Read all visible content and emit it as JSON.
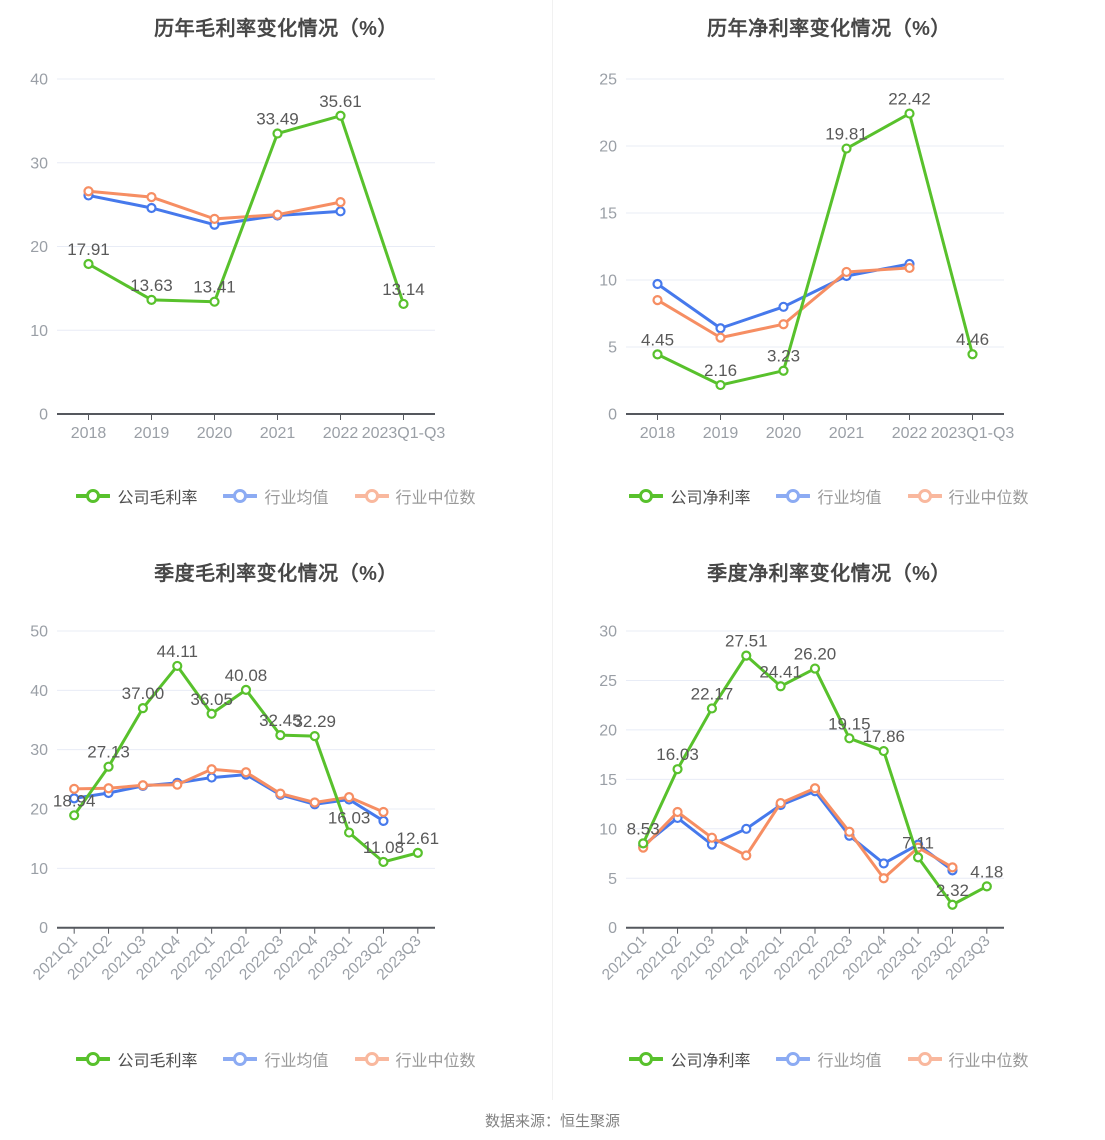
{
  "footer": {
    "source": "数据来源：恒生聚源"
  },
  "colors": {
    "company": "#58C12C",
    "industry_avg": "#4679EC",
    "industry_median": "#F68E63",
    "grid_line": "#E8ECF6",
    "axis_line": "#55585E",
    "tick_text": "#9A9FA6",
    "data_label": "#595959"
  },
  "chart_data": [
    {
      "id": "annual-gross-margin",
      "type": "line",
      "title": "历年毛利率变化情况（%）",
      "xlabel": "",
      "ylabel": "",
      "grid": true,
      "legend_position": "bottom",
      "rotate_x_labels": false,
      "ylim": [
        0,
        40
      ],
      "yticks": [
        0,
        10,
        20,
        30,
        40
      ],
      "categories": [
        "2018",
        "2019",
        "2020",
        "2021",
        "2022",
        "2023Q1-Q3"
      ],
      "series": [
        {
          "name": "行业均值",
          "color_key": "industry_avg",
          "show_labels": false,
          "values": [
            26.1,
            24.6,
            22.6,
            23.7,
            24.2
          ]
        },
        {
          "name": "行业中位数",
          "color_key": "industry_median",
          "show_labels": false,
          "values": [
            26.6,
            25.9,
            23.3,
            23.8,
            25.3
          ]
        },
        {
          "name": "公司毛利率",
          "color_key": "company",
          "show_labels": true,
          "values": [
            17.91,
            13.63,
            13.41,
            33.49,
            35.61,
            13.14
          ]
        }
      ],
      "legend_order": [
        "公司毛利率",
        "行业均值",
        "行业中位数"
      ]
    },
    {
      "id": "annual-net-margin",
      "type": "line",
      "title": "历年净利率变化情况（%）",
      "xlabel": "",
      "ylabel": "",
      "grid": true,
      "legend_position": "bottom",
      "rotate_x_labels": false,
      "ylim": [
        0,
        25
      ],
      "yticks": [
        0,
        5,
        10,
        15,
        20,
        25
      ],
      "categories": [
        "2018",
        "2019",
        "2020",
        "2021",
        "2022",
        "2023Q1-Q3"
      ],
      "series": [
        {
          "name": "行业均值",
          "color_key": "industry_avg",
          "show_labels": false,
          "values": [
            9.7,
            6.4,
            8.0,
            10.3,
            11.2
          ]
        },
        {
          "name": "行业中位数",
          "color_key": "industry_median",
          "show_labels": false,
          "values": [
            8.5,
            5.7,
            6.7,
            10.6,
            10.9
          ]
        },
        {
          "name": "公司净利率",
          "color_key": "company",
          "show_labels": true,
          "values": [
            4.45,
            2.16,
            3.23,
            19.81,
            22.42,
            4.46
          ]
        }
      ],
      "legend_order": [
        "公司净利率",
        "行业均值",
        "行业中位数"
      ]
    },
    {
      "id": "quarterly-gross-margin",
      "type": "line",
      "title": "季度毛利率变化情况（%）",
      "xlabel": "",
      "ylabel": "",
      "grid": true,
      "legend_position": "bottom",
      "rotate_x_labels": true,
      "ylim": [
        0,
        50
      ],
      "yticks": [
        0,
        10,
        20,
        30,
        40,
        50
      ],
      "categories": [
        "2021Q1",
        "2021Q2",
        "2021Q3",
        "2021Q4",
        "2022Q1",
        "2022Q2",
        "2022Q3",
        "2022Q4",
        "2023Q1",
        "2023Q2",
        "2023Q3"
      ],
      "series": [
        {
          "name": "行业均值",
          "color_key": "industry_avg",
          "show_labels": false,
          "values": [
            21.8,
            22.7,
            23.9,
            24.4,
            25.3,
            25.8,
            22.4,
            20.8,
            21.6,
            18.0
          ]
        },
        {
          "name": "行业中位数",
          "color_key": "industry_median",
          "show_labels": false,
          "values": [
            23.4,
            23.5,
            24.0,
            24.1,
            26.7,
            26.2,
            22.6,
            21.1,
            22.0,
            19.5
          ]
        },
        {
          "name": "公司毛利率",
          "color_key": "company",
          "show_labels": true,
          "values": [
            18.94,
            27.13,
            37.0,
            44.11,
            36.05,
            40.08,
            32.45,
            32.29,
            16.03,
            11.08,
            12.61
          ]
        }
      ],
      "legend_order": [
        "公司毛利率",
        "行业均值",
        "行业中位数"
      ]
    },
    {
      "id": "quarterly-net-margin",
      "type": "line",
      "title": "季度净利率变化情况（%）",
      "xlabel": "",
      "ylabel": "",
      "grid": true,
      "legend_position": "bottom",
      "rotate_x_labels": true,
      "ylim": [
        0,
        30
      ],
      "yticks": [
        0,
        5,
        10,
        15,
        20,
        25,
        30
      ],
      "categories": [
        "2021Q1",
        "2021Q2",
        "2021Q3",
        "2021Q4",
        "2022Q1",
        "2022Q2",
        "2022Q3",
        "2022Q4",
        "2023Q1",
        "2023Q2",
        "2023Q3"
      ],
      "series": [
        {
          "name": "行业均值",
          "color_key": "industry_avg",
          "show_labels": false,
          "values": [
            8.3,
            11.1,
            8.4,
            10.0,
            12.4,
            13.8,
            9.3,
            6.5,
            8.4,
            5.8
          ]
        },
        {
          "name": "行业中位数",
          "color_key": "industry_median",
          "show_labels": false,
          "values": [
            8.1,
            11.7,
            9.1,
            7.3,
            12.6,
            14.1,
            9.7,
            5.0,
            8.1,
            6.1
          ]
        },
        {
          "name": "公司净利率",
          "color_key": "company",
          "show_labels": true,
          "values": [
            8.53,
            16.03,
            22.17,
            27.51,
            24.41,
            26.2,
            19.15,
            17.86,
            7.11,
            2.32,
            4.18
          ]
        }
      ],
      "legend_order": [
        "公司净利率",
        "行业均值",
        "行业中位数"
      ]
    }
  ]
}
